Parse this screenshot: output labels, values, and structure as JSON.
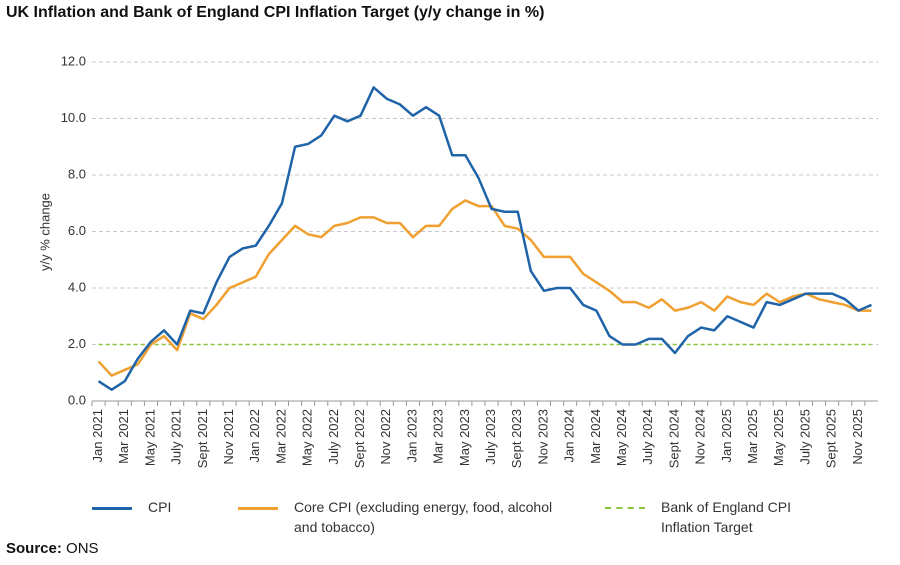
{
  "chart_data": {
    "type": "line",
    "title": "UK Inflation and Bank of England CPI Inflation Target (y/y change in %)",
    "y_label": "y/y % change",
    "source_label": "Source:",
    "source": "ONS",
    "categories": [
      "Jan 2021",
      null,
      "Mar 2021",
      null,
      "May 2021",
      null,
      "July 2021",
      null,
      "Sept 2021",
      null,
      "Nov 2021",
      null,
      "Jan 2022",
      null,
      "Mar 2022",
      null,
      "May 2022",
      null,
      "July 2022",
      null,
      "Sept 2022",
      null,
      "Nov 2022",
      null,
      "Jan 2023",
      null,
      "Mar 2023",
      null,
      "May 2023",
      null,
      "July 2023",
      null,
      "Sept 2023",
      null,
      "Nov 2023",
      null,
      "Jan 2024",
      null,
      "Mar 2024",
      null,
      "May 2024",
      null,
      "July 2024",
      null,
      "Sept 2024",
      null,
      "Nov 2024",
      null,
      "Jan 2025",
      null,
      "Mar 2025",
      null,
      "May 2025",
      null,
      "July 2025",
      null,
      "Sept 2025",
      null,
      "Nov 2025",
      null
    ],
    "series": [
      {
        "name": "CPI",
        "color": "#1f64a8",
        "dashed": false,
        "values": [
          0.7,
          0.4,
          0.7,
          1.5,
          2.1,
          2.5,
          2.0,
          3.2,
          3.1,
          4.2,
          5.1,
          5.4,
          5.5,
          6.2,
          7.0,
          9.0,
          9.1,
          9.4,
          10.1,
          9.9,
          10.1,
          11.1,
          10.7,
          10.5,
          10.1,
          10.4,
          10.1,
          8.7,
          8.7,
          7.9,
          6.8,
          6.7,
          6.7,
          4.6,
          3.9,
          4.0,
          4.0,
          3.4,
          3.2,
          2.3,
          2.0,
          2.0,
          2.2,
          2.2,
          1.7,
          2.3,
          2.6,
          2.5,
          3.0,
          2.8,
          2.6,
          3.5,
          3.4,
          3.6,
          3.8,
          3.8,
          3.8,
          3.6,
          3.2,
          3.4
        ]
      },
      {
        "name": "Core CPI (excluding energy, food, alcohol and tobacco)",
        "color": "#f0a030",
        "dashed": false,
        "values": [
          1.4,
          0.9,
          1.1,
          1.3,
          2.0,
          2.3,
          1.8,
          3.1,
          2.9,
          3.4,
          4.0,
          4.2,
          4.4,
          5.2,
          5.7,
          6.2,
          5.9,
          5.8,
          6.2,
          6.3,
          6.5,
          6.5,
          6.3,
          6.3,
          5.8,
          6.2,
          6.2,
          6.8,
          7.1,
          6.9,
          6.9,
          6.2,
          6.1,
          5.7,
          5.1,
          5.1,
          5.1,
          4.5,
          4.2,
          3.9,
          3.5,
          3.5,
          3.3,
          3.6,
          3.2,
          3.3,
          3.5,
          3.2,
          3.7,
          3.5,
          3.4,
          3.8,
          3.5,
          3.7,
          3.8,
          3.6,
          3.5,
          3.4,
          3.2,
          3.2
        ]
      },
      {
        "name": "Bank of England CPI Inflation Target",
        "color": "#8cc63f",
        "dashed": true,
        "values": [
          2,
          2,
          2,
          2,
          2,
          2,
          2,
          2,
          2,
          2,
          2,
          2,
          2,
          2,
          2,
          2,
          2,
          2,
          2,
          2,
          2,
          2,
          2,
          2,
          2,
          2,
          2,
          2,
          2,
          2,
          2,
          2,
          2,
          2,
          2,
          2,
          2,
          2,
          2,
          2,
          2,
          2,
          2,
          2,
          2,
          2,
          2,
          2,
          2,
          2,
          2,
          2,
          2,
          2,
          2,
          2,
          2,
          2,
          2,
          2
        ]
      }
    ],
    "ylim": [
      0,
      12
    ],
    "yticks": [
      {
        "value": 0,
        "label": "0.0"
      },
      {
        "value": 2,
        "label": "2.0"
      },
      {
        "value": 4,
        "label": "4.0"
      },
      {
        "value": 6,
        "label": "6.0"
      },
      {
        "value": 8,
        "label": "8.0"
      },
      {
        "value": 10,
        "label": "10.0"
      },
      {
        "value": 12,
        "label": "12.0"
      }
    ],
    "grid": true
  }
}
